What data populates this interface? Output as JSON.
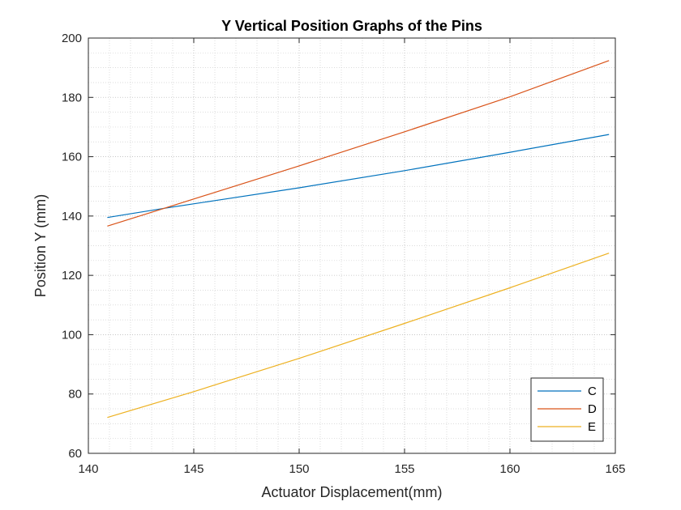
{
  "chart_data": {
    "type": "line",
    "title": "Y Vertical Position Graphs of the Pins",
    "xlabel": "Actuator Displacement(mm)",
    "ylabel": "Position Y (mm)",
    "xlim": [
      140,
      165
    ],
    "ylim": [
      60,
      200
    ],
    "xticks": [
      140,
      145,
      150,
      155,
      160,
      165
    ],
    "yticks": [
      60,
      80,
      100,
      120,
      140,
      160,
      180,
      200
    ],
    "grid": true,
    "minor_grid": true,
    "legend_position": "bottom-right",
    "series": [
      {
        "name": "C",
        "color": "#0072BD",
        "x": [
          140.9,
          143.6,
          146,
          150,
          155,
          160,
          164.7
        ],
        "y": [
          139.5,
          142.6,
          145.2,
          149.5,
          155.3,
          161.5,
          167.5
        ]
      },
      {
        "name": "D",
        "color": "#D95319",
        "x": [
          140.9,
          143.6,
          150,
          155,
          160,
          164.7
        ],
        "y": [
          136.6,
          142.6,
          156.9,
          168.4,
          180.2,
          192.4
        ]
      },
      {
        "name": "E",
        "color": "#EDB120",
        "x": [
          140.9,
          145,
          150,
          155,
          160,
          164.7
        ],
        "y": [
          72.1,
          80.8,
          92.0,
          103.8,
          115.8,
          127.5
        ]
      }
    ]
  }
}
